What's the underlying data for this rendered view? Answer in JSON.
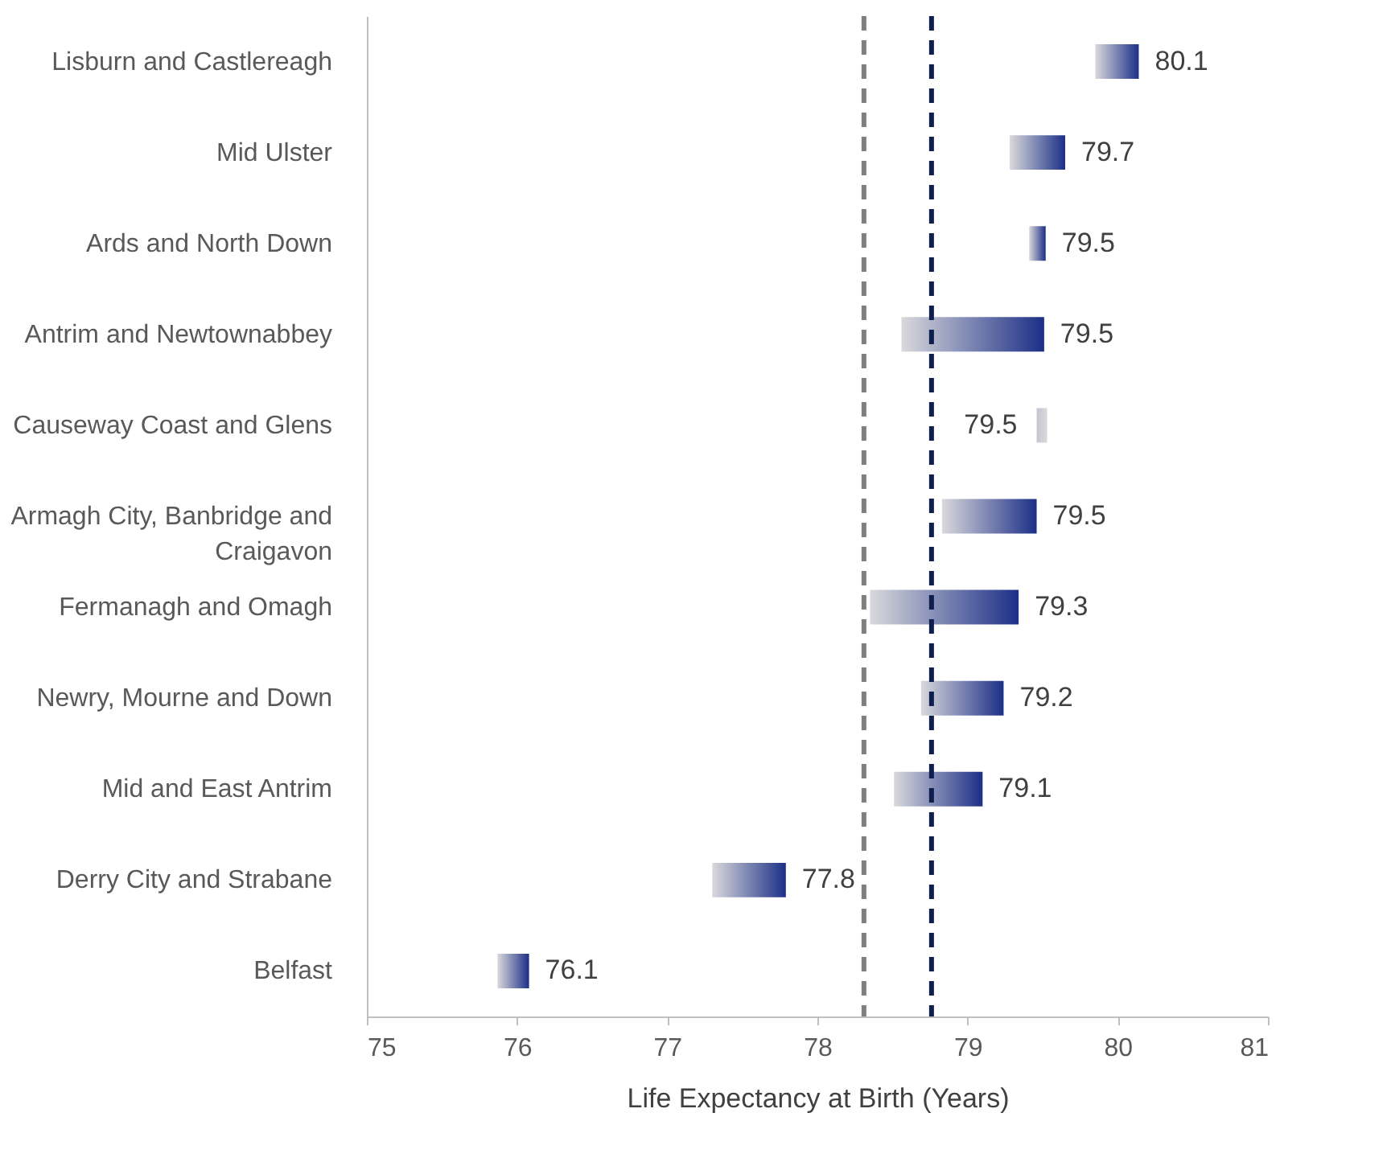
{
  "chart_data": {
    "type": "bar",
    "orientation": "horizontal",
    "xlabel": "Life Expectancy at Birth (Years)",
    "categories": [
      "Lisburn and Castlereagh",
      "Mid Ulster",
      "Ards and North Down",
      "Antrim and Newtownabbey",
      "Causeway Coast and Glens",
      "Armagh City, Banbridge and Craigavon",
      "Fermanagh and Omagh",
      "Newry, Mourne and Down",
      "Mid and East Antrim",
      "Derry City and Strabane",
      "Belfast"
    ],
    "base": [
      79.85,
      79.28,
      79.41,
      78.56,
      79.53,
      78.83,
      78.35,
      78.69,
      78.51,
      77.3,
      75.87
    ],
    "values": [
      0.29,
      0.37,
      0.11,
      0.95,
      -0.07,
      0.63,
      0.99,
      0.55,
      0.59,
      0.49,
      0.21
    ],
    "colors": [
      "#1c2f87",
      "#1c2f87",
      "#1c2f87",
      "#1c2f87",
      "#c4c6d0",
      "#1c2f87",
      "#1c2f87",
      "#1c2f87",
      "#1c2f87",
      "#1c2f87",
      "#1c2f87"
    ],
    "value_labels": [
      "80.1",
      "79.7",
      "79.5",
      "79.5",
      "79.5",
      "79.5",
      "79.3",
      "79.2",
      "79.1",
      "77.8",
      "76.1"
    ],
    "xlim": [
      75,
      81
    ],
    "xticks": [
      75,
      76,
      77,
      78,
      79,
      80,
      81
    ],
    "ref_lines": [
      {
        "axis": "x",
        "value": 78.31,
        "color": "#7f7f7f",
        "line_style": "dashed"
      },
      {
        "axis": "x",
        "value": 78.76,
        "color": "#0c1f4f",
        "line_style": "dashed"
      }
    ],
    "grid": false
  }
}
